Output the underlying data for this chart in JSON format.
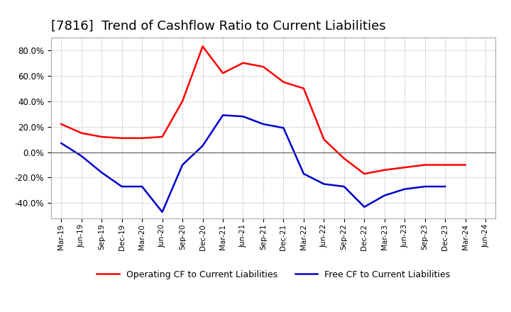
{
  "title": "[7816]  Trend of Cashflow Ratio to Current Liabilities",
  "x_labels": [
    "Mar-19",
    "Jun-19",
    "Sep-19",
    "Dec-19",
    "Mar-20",
    "Jun-20",
    "Sep-20",
    "Dec-20",
    "Mar-21",
    "Jun-21",
    "Sep-21",
    "Dec-21",
    "Mar-22",
    "Jun-22",
    "Sep-22",
    "Dec-22",
    "Mar-23",
    "Jun-23",
    "Sep-23",
    "Dec-23",
    "Mar-24",
    "Jun-24"
  ],
  "operating_cf": [
    0.22,
    0.15,
    0.12,
    0.11,
    0.11,
    0.12,
    0.4,
    0.83,
    0.62,
    0.7,
    0.67,
    0.55,
    0.5,
    0.1,
    -0.05,
    -0.17,
    -0.14,
    -0.12,
    -0.1,
    -0.1,
    -0.1,
    null
  ],
  "free_cf": [
    0.07,
    -0.03,
    -0.16,
    -0.27,
    -0.27,
    -0.47,
    -0.1,
    0.05,
    0.29,
    0.28,
    0.22,
    0.19,
    -0.17,
    -0.25,
    -0.27,
    -0.43,
    -0.34,
    -0.29,
    -0.27,
    -0.27,
    null,
    null
  ],
  "operating_color": "#FF0000",
  "free_color": "#0000CC",
  "ylim": [
    -0.52,
    0.9
  ],
  "yticks": [
    -0.4,
    -0.2,
    0.0,
    0.2,
    0.4,
    0.6,
    0.8
  ],
  "background_color": "#FFFFFF",
  "grid_color": "#AAAAAA",
  "title_fontsize": 13
}
